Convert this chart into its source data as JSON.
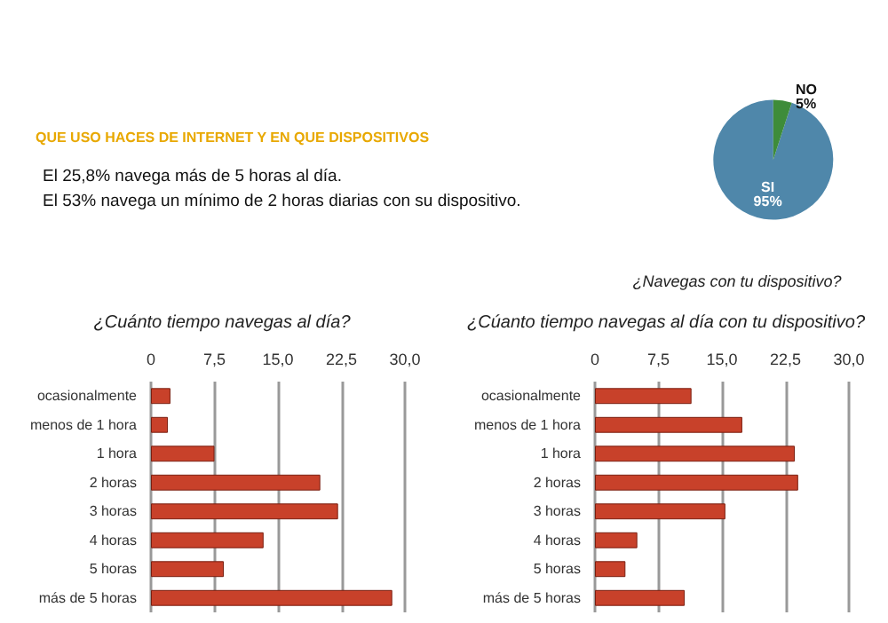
{
  "chart_data": [
    {
      "type": "other",
      "title": "QUE USO HACES DE INTERNET Y EN QUE DISPOSITIVOS",
      "annotations": [
        "El 25,8% navega más de 5 horas al día.",
        "El 53% navega un mínimo de 2 horas diarias con su dispositivo."
      ]
    },
    {
      "type": "pie",
      "title": "¿Navegas con tu dispositivo?",
      "categories": [
        "SI",
        "NO"
      ],
      "values": [
        95,
        5
      ],
      "value_labels": [
        "95%",
        "5%"
      ],
      "colors": [
        "#4f87aa",
        "#3e8c3a"
      ]
    },
    {
      "type": "bar",
      "orientation": "horizontal",
      "title": "¿Cuánto tiempo navegas al día?",
      "categories": [
        "ocasionalmente",
        "menos de 1 hora",
        "1 hora",
        "2 horas",
        "3 horas",
        "4 horas",
        "5 horas",
        "más de 5 horas"
      ],
      "values": [
        2.3,
        2.0,
        7.5,
        20.0,
        22.1,
        13.3,
        8.6,
        28.5
      ],
      "color": "#c8412a",
      "xlim": [
        0,
        30
      ],
      "xticks": [
        0,
        {
          "value": 7.5,
          "label": "7,5"
        },
        {
          "value": 15,
          "label": "15,0"
        },
        {
          "value": 22.5,
          "label": "22,5"
        },
        {
          "value": 30,
          "label": "30,0"
        }
      ],
      "grid": "x"
    },
    {
      "type": "bar",
      "orientation": "horizontal",
      "title": "¿Cúanto tiempo navegas al día con tu dispositivo?",
      "categories": [
        "ocasionalmente",
        "menos de 1 hora",
        "1 hora",
        "2 horas",
        "3 horas",
        "4 horas",
        "5 horas",
        "más de 5 horas"
      ],
      "values": [
        11.4,
        17.4,
        23.6,
        24.0,
        15.4,
        5.0,
        3.6,
        10.6
      ],
      "color": "#c8412a",
      "xlim": [
        0,
        30
      ],
      "xticks": [
        0,
        {
          "value": 7.5,
          "label": "7,5"
        },
        {
          "value": 15,
          "label": "15,0"
        },
        {
          "value": 22.5,
          "label": "22,5"
        },
        {
          "value": 30,
          "label": "30,0"
        }
      ],
      "grid": "x"
    }
  ]
}
